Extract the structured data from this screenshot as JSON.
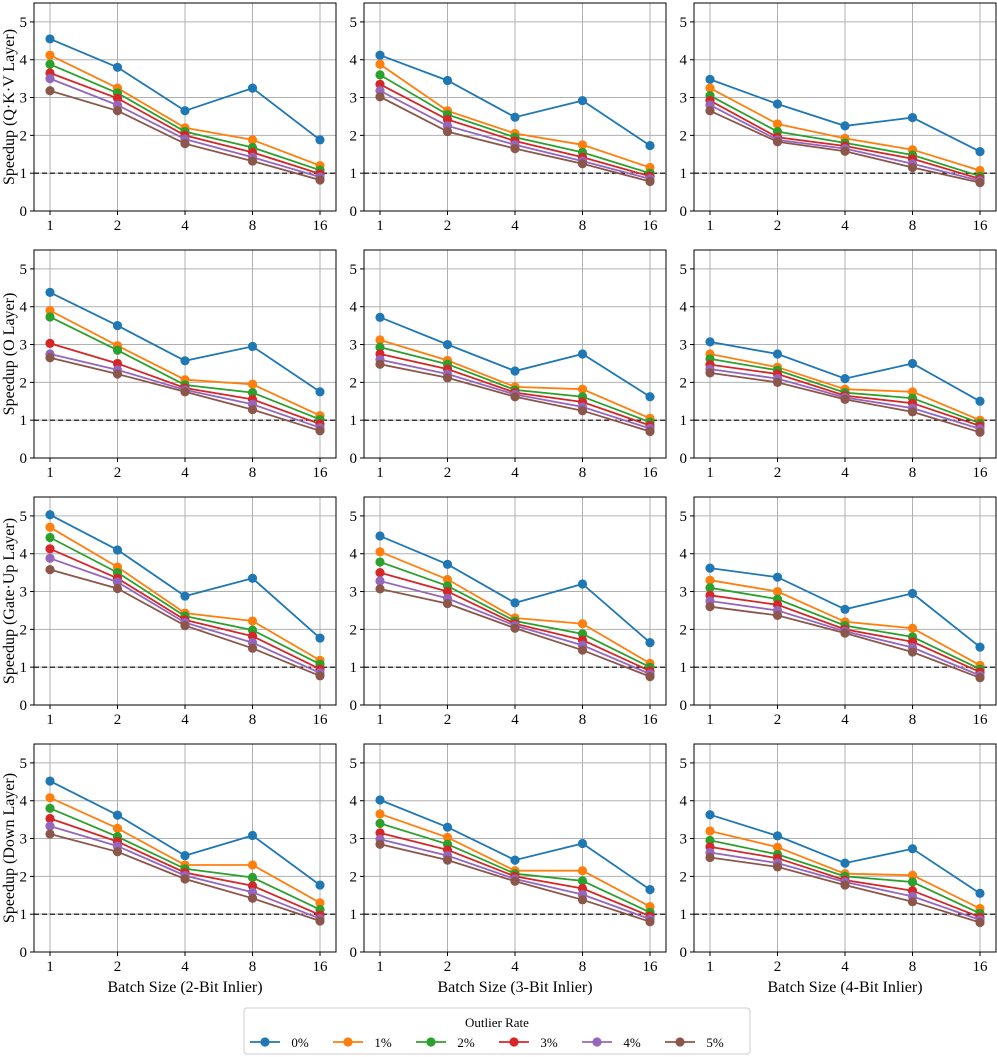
{
  "chart_data": {
    "type": "line",
    "x": [
      1,
      2,
      4,
      8,
      16
    ],
    "x_tick_labels": [
      "1",
      "2",
      "4",
      "8",
      "16"
    ],
    "ylim": [
      0,
      5.5
    ],
    "y_ticks": [
      0,
      1,
      2,
      3,
      4,
      5
    ],
    "reference_line": 1,
    "grid": true,
    "row_labels": [
      "Speedup (Q·K·V Layer)",
      "Speedup (O Layer)",
      "Speedup (Gate·Up Layer)",
      "Speedup (Down Layer)"
    ],
    "col_labels": [
      "Batch Size (2-Bit Inlier)",
      "Batch Size (3-Bit Inlier)",
      "Batch Size (4-Bit Inlier)"
    ],
    "legend": {
      "title": "Outlier Rate",
      "placement": "bottom-center",
      "items": [
        {
          "label": "0%",
          "color": "#1f77b4"
        },
        {
          "label": "1%",
          "color": "#ff7f0e"
        },
        {
          "label": "2%",
          "color": "#2ca02c"
        },
        {
          "label": "3%",
          "color": "#d62728"
        },
        {
          "label": "4%",
          "color": "#9467bd"
        },
        {
          "label": "5%",
          "color": "#8c564b"
        }
      ]
    },
    "panels": [
      [
        [
          [
            4.55,
            3.8,
            2.65,
            3.25,
            1.88
          ],
          [
            4.12,
            3.25,
            2.2,
            1.88,
            1.2
          ],
          [
            3.88,
            3.12,
            2.1,
            1.68,
            1.08
          ],
          [
            3.65,
            2.98,
            2.0,
            1.55,
            0.98
          ],
          [
            3.5,
            2.8,
            1.9,
            1.42,
            0.9
          ],
          [
            3.18,
            2.65,
            1.78,
            1.32,
            0.82
          ]
        ],
        [
          [
            4.12,
            3.45,
            2.48,
            2.92,
            1.73
          ],
          [
            3.88,
            2.65,
            2.05,
            1.75,
            1.15
          ],
          [
            3.6,
            2.55,
            1.95,
            1.55,
            1.0
          ],
          [
            3.35,
            2.42,
            1.85,
            1.42,
            0.92
          ],
          [
            3.18,
            2.25,
            1.75,
            1.32,
            0.85
          ],
          [
            3.02,
            2.1,
            1.65,
            1.25,
            0.78
          ]
        ],
        [
          [
            3.48,
            2.83,
            2.25,
            2.47,
            1.57
          ],
          [
            3.25,
            2.3,
            1.92,
            1.62,
            1.07
          ],
          [
            3.05,
            2.1,
            1.8,
            1.48,
            0.92
          ],
          [
            2.92,
            1.95,
            1.72,
            1.38,
            0.85
          ],
          [
            2.8,
            1.88,
            1.65,
            1.25,
            0.8
          ],
          [
            2.65,
            1.83,
            1.58,
            1.15,
            0.75
          ]
        ]
      ],
      [
        [
          [
            4.38,
            3.5,
            2.57,
            2.95,
            1.75
          ],
          [
            3.9,
            2.97,
            2.07,
            1.95,
            1.12
          ],
          [
            3.73,
            2.85,
            1.93,
            1.73,
            1.02
          ],
          [
            3.03,
            2.5,
            1.85,
            1.55,
            0.9
          ],
          [
            2.75,
            2.33,
            1.8,
            1.42,
            0.8
          ],
          [
            2.65,
            2.22,
            1.75,
            1.28,
            0.72
          ]
        ],
        [
          [
            3.72,
            3.0,
            2.3,
            2.75,
            1.62
          ],
          [
            3.12,
            2.58,
            1.88,
            1.82,
            1.05
          ],
          [
            2.93,
            2.48,
            1.8,
            1.62,
            0.95
          ],
          [
            2.75,
            2.35,
            1.73,
            1.48,
            0.86
          ],
          [
            2.6,
            2.22,
            1.68,
            1.35,
            0.78
          ],
          [
            2.48,
            2.12,
            1.62,
            1.25,
            0.7
          ]
        ],
        [
          [
            3.07,
            2.75,
            2.1,
            2.5,
            1.5
          ],
          [
            2.75,
            2.4,
            1.82,
            1.75,
            1.0
          ],
          [
            2.62,
            2.32,
            1.73,
            1.58,
            0.92
          ],
          [
            2.47,
            2.22,
            1.65,
            1.45,
            0.85
          ],
          [
            2.35,
            2.1,
            1.6,
            1.32,
            0.77
          ],
          [
            2.25,
            2.0,
            1.55,
            1.22,
            0.68
          ]
        ]
      ],
      [
        [
          [
            5.03,
            4.1,
            2.88,
            3.35,
            1.77
          ],
          [
            4.7,
            3.65,
            2.43,
            2.22,
            1.18
          ],
          [
            4.43,
            3.5,
            2.35,
            1.98,
            1.08
          ],
          [
            4.13,
            3.35,
            2.25,
            1.82,
            0.95
          ],
          [
            3.88,
            3.25,
            2.18,
            1.65,
            0.85
          ],
          [
            3.58,
            3.08,
            2.1,
            1.5,
            0.77
          ]
        ],
        [
          [
            4.47,
            3.72,
            2.7,
            3.2,
            1.65
          ],
          [
            4.05,
            3.32,
            2.3,
            2.15,
            1.1
          ],
          [
            3.78,
            3.15,
            2.22,
            1.88,
            1.0
          ],
          [
            3.5,
            3.0,
            2.15,
            1.72,
            0.9
          ],
          [
            3.28,
            2.82,
            2.1,
            1.58,
            0.82
          ],
          [
            3.07,
            2.68,
            2.03,
            1.45,
            0.75
          ]
        ],
        [
          [
            3.62,
            3.38,
            2.53,
            2.95,
            1.53
          ],
          [
            3.3,
            3.0,
            2.2,
            2.03,
            1.05
          ],
          [
            3.1,
            2.8,
            2.1,
            1.8,
            0.95
          ],
          [
            2.9,
            2.65,
            2.0,
            1.67,
            0.87
          ],
          [
            2.75,
            2.5,
            1.95,
            1.52,
            0.78
          ],
          [
            2.6,
            2.37,
            1.9,
            1.4,
            0.72
          ]
        ]
      ],
      [
        [
          [
            4.52,
            3.62,
            2.55,
            3.08,
            1.77
          ],
          [
            4.08,
            3.27,
            2.3,
            2.3,
            1.3
          ],
          [
            3.8,
            3.05,
            2.2,
            1.97,
            1.12
          ],
          [
            3.53,
            2.92,
            2.1,
            1.75,
            0.98
          ],
          [
            3.33,
            2.8,
            2.02,
            1.58,
            0.88
          ],
          [
            3.12,
            2.65,
            1.93,
            1.42,
            0.82
          ]
        ],
        [
          [
            4.02,
            3.3,
            2.43,
            2.87,
            1.65
          ],
          [
            3.65,
            3.03,
            2.15,
            2.15,
            1.2
          ],
          [
            3.4,
            2.85,
            2.07,
            1.88,
            1.05
          ],
          [
            3.15,
            2.7,
            2.0,
            1.68,
            0.95
          ],
          [
            2.98,
            2.55,
            1.93,
            1.52,
            0.87
          ],
          [
            2.85,
            2.43,
            1.87,
            1.38,
            0.8
          ]
        ],
        [
          [
            3.63,
            3.07,
            2.35,
            2.73,
            1.55
          ],
          [
            3.2,
            2.77,
            2.07,
            2.03,
            1.15
          ],
          [
            2.95,
            2.58,
            2.0,
            1.85,
            1.02
          ],
          [
            2.78,
            2.48,
            1.9,
            1.62,
            0.92
          ],
          [
            2.63,
            2.35,
            1.85,
            1.47,
            0.85
          ],
          [
            2.5,
            2.25,
            1.77,
            1.33,
            0.78
          ]
        ]
      ]
    ]
  }
}
